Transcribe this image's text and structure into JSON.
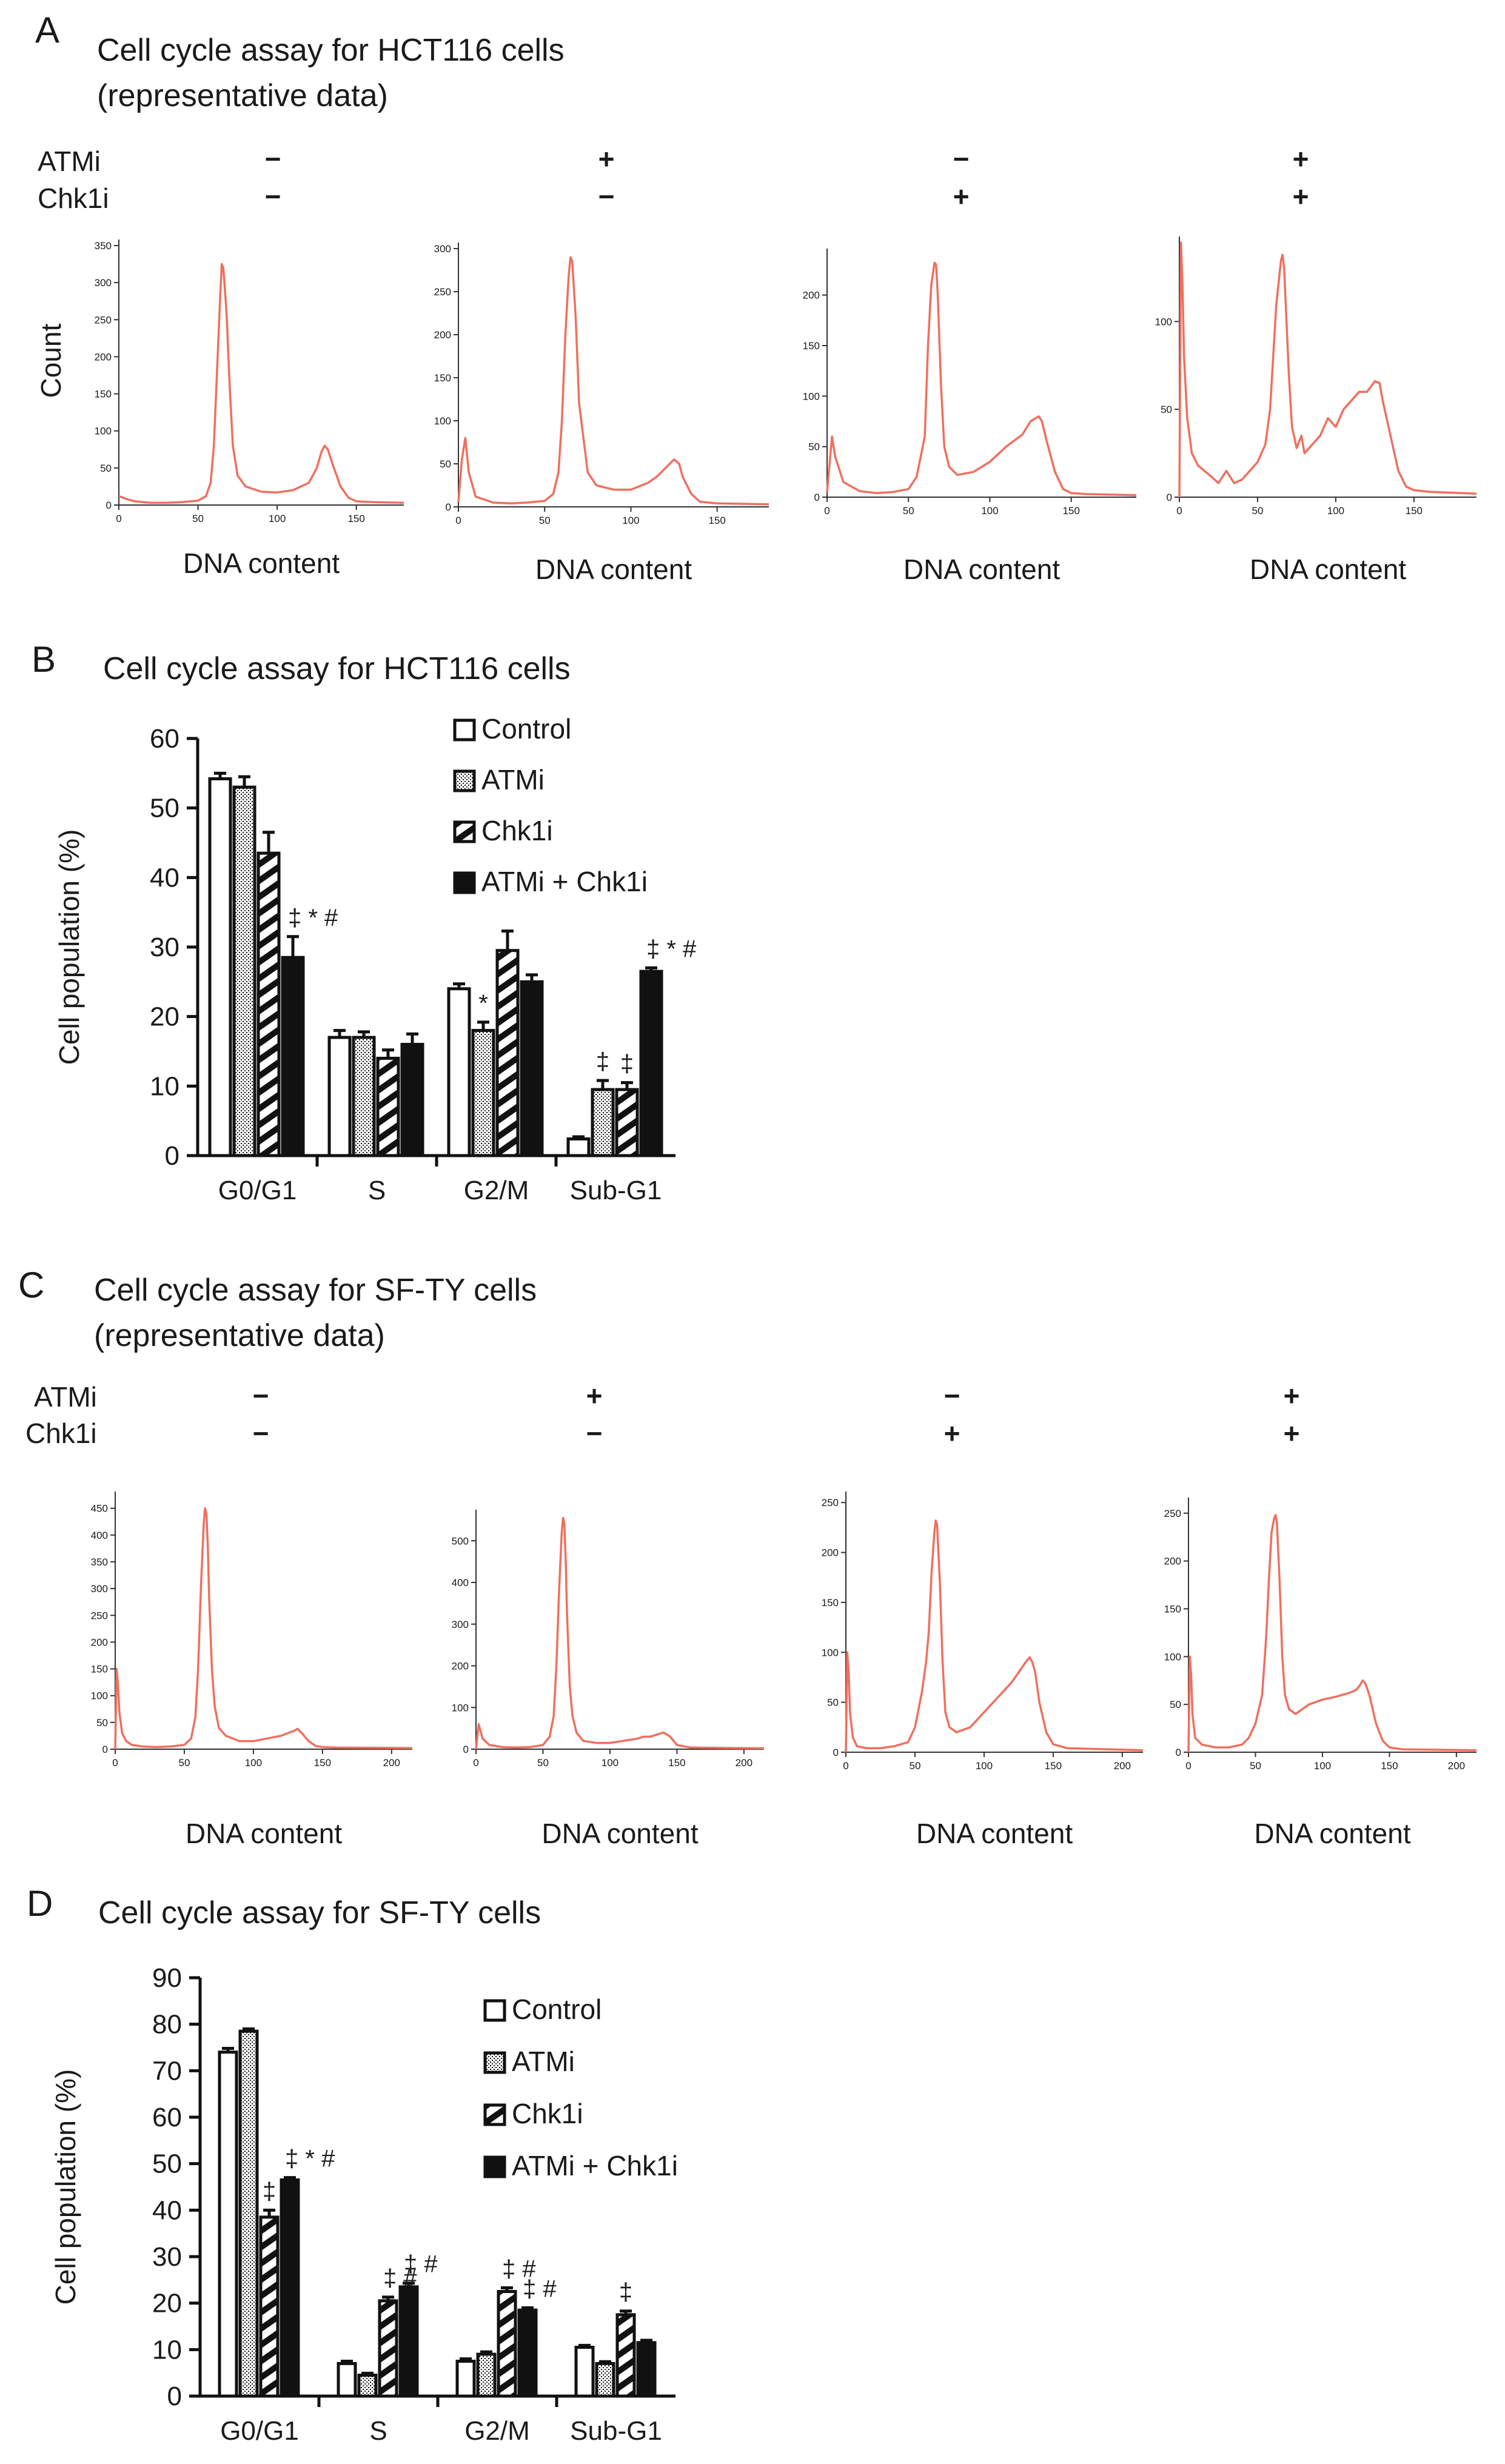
{
  "colors": {
    "trace": "#ef6f5e",
    "ink": "#111111",
    "bar_fill_light": "#ffffff",
    "bar_fill_dark": "#111111"
  },
  "panels": [
    {
      "letter": "A",
      "title": "Cell cycle assay for HCT116 cells",
      "subtitle": "(representative data)",
      "row_labels": [
        "ATMi",
        "Chk1i"
      ],
      "signs": [
        [
          "−",
          "−"
        ],
        [
          "+",
          "−"
        ],
        [
          "−",
          "+"
        ],
        [
          "+",
          "+"
        ]
      ],
      "y_label": "Count",
      "histograms": [
        {
          "xlabel": "DNA content",
          "yticks": [
            "0",
            "50",
            "100",
            "150",
            "200",
            "250",
            "300",
            "350"
          ],
          "xticks": [
            "0",
            "50",
            "100",
            "150"
          ]
        },
        {
          "xlabel": "DNA content",
          "yticks": [
            "0",
            "50",
            "100",
            "150",
            "200",
            "250",
            "300"
          ],
          "xticks": [
            "0",
            "50",
            "100",
            "150"
          ]
        },
        {
          "xlabel": "DNA content",
          "yticks": [
            "0",
            "50",
            "100",
            "150",
            "200"
          ],
          "xticks": [
            "0",
            "50",
            "100",
            "150"
          ]
        },
        {
          "xlabel": "DNA content",
          "yticks": [
            "0",
            "50",
            "100"
          ],
          "xticks": [
            "0",
            "50",
            "100",
            "150"
          ]
        }
      ]
    },
    {
      "letter": "C",
      "title": "Cell cycle assay for SF-TY cells",
      "subtitle": "(representative data)",
      "row_labels": [
        "ATMi",
        "Chk1i"
      ],
      "signs": [
        [
          "−",
          "−"
        ],
        [
          "+",
          "−"
        ],
        [
          "−",
          "+"
        ],
        [
          "+",
          "+"
        ]
      ],
      "histograms": [
        {
          "xlabel": "DNA content",
          "yticks": [
            "0",
            "50",
            "100",
            "150",
            "200",
            "250",
            "300",
            "350",
            "400",
            "450"
          ],
          "xticks": [
            "0",
            "50",
            "100",
            "150",
            "200"
          ]
        },
        {
          "xlabel": "DNA content",
          "yticks": [
            "0",
            "100",
            "200",
            "300",
            "400",
            "500"
          ],
          "xticks": [
            "0",
            "50",
            "100",
            "150",
            "200"
          ]
        },
        {
          "xlabel": "DNA content",
          "yticks": [
            "0",
            "50",
            "100",
            "150",
            "200",
            "250"
          ],
          "xticks": [
            "0",
            "50",
            "100",
            "150",
            "200"
          ]
        },
        {
          "xlabel": "DNA content",
          "yticks": [
            "0",
            "50",
            "100",
            "150",
            "200",
            "250"
          ],
          "xticks": [
            "0",
            "50",
            "100",
            "150",
            "200"
          ]
        }
      ]
    }
  ],
  "chart_data": [
    {
      "type": "line",
      "panel": "A",
      "title": "Cell cycle assay for HCT116 cells",
      "xlabel": "DNA content",
      "ylabel": "Count",
      "series": [
        {
          "xlim": [
            0,
            180
          ],
          "ylim": [
            0,
            350
          ],
          "x": [
            0,
            5,
            10,
            20,
            30,
            40,
            50,
            55,
            58,
            60,
            62,
            64,
            65,
            66,
            68,
            70,
            72,
            75,
            80,
            90,
            100,
            110,
            120,
            125,
            128,
            130,
            132,
            135,
            140,
            145,
            150,
            160,
            180
          ],
          "y": [
            12,
            8,
            5,
            3,
            3,
            4,
            6,
            12,
            30,
            80,
            180,
            280,
            325,
            320,
            260,
            160,
            80,
            40,
            25,
            18,
            17,
            20,
            30,
            50,
            72,
            80,
            75,
            55,
            25,
            10,
            5,
            4,
            3
          ]
        },
        {
          "xlim": [
            0,
            180
          ],
          "ylim": [
            0,
            300
          ],
          "x": [
            0,
            2,
            4,
            6,
            10,
            20,
            30,
            40,
            50,
            55,
            58,
            60,
            62,
            64,
            65,
            66,
            68,
            70,
            75,
            80,
            90,
            100,
            110,
            115,
            120,
            125,
            128,
            130,
            135,
            140,
            150,
            180
          ],
          "y": [
            5,
            55,
            80,
            40,
            12,
            5,
            4,
            5,
            7,
            15,
            40,
            100,
            200,
            270,
            290,
            285,
            220,
            120,
            40,
            25,
            20,
            20,
            28,
            35,
            45,
            55,
            50,
            35,
            15,
            6,
            4,
            3
          ]
        },
        {
          "xlim": [
            0,
            190
          ],
          "ylim": [
            0,
            240
          ],
          "x": [
            0,
            3,
            5,
            10,
            20,
            30,
            40,
            50,
            55,
            60,
            62,
            64,
            66,
            67,
            68,
            70,
            72,
            75,
            80,
            90,
            100,
            110,
            120,
            125,
            130,
            132,
            135,
            140,
            145,
            150,
            160,
            190
          ],
          "y": [
            5,
            60,
            40,
            15,
            6,
            4,
            5,
            8,
            20,
            60,
            150,
            210,
            232,
            230,
            200,
            110,
            50,
            30,
            22,
            25,
            35,
            50,
            62,
            75,
            80,
            75,
            55,
            25,
            8,
            4,
            3,
            2
          ]
        },
        {
          "xlim": [
            0,
            190
          ],
          "ylim": [
            0,
            145
          ],
          "x": [
            0,
            1,
            2,
            3,
            5,
            8,
            12,
            20,
            25,
            30,
            35,
            40,
            45,
            50,
            55,
            58,
            60,
            62,
            65,
            66,
            67,
            68,
            70,
            72,
            75,
            78,
            80,
            85,
            90,
            95,
            100,
            105,
            110,
            115,
            120,
            125,
            128,
            130,
            135,
            140,
            145,
            150,
            160,
            190
          ],
          "y": [
            0,
            145,
            120,
            80,
            45,
            25,
            18,
            12,
            8,
            15,
            8,
            10,
            15,
            20,
            30,
            50,
            80,
            110,
            135,
            138,
            130,
            110,
            70,
            40,
            28,
            35,
            25,
            30,
            35,
            45,
            40,
            50,
            55,
            60,
            60,
            66,
            65,
            55,
            35,
            15,
            6,
            4,
            3,
            2
          ]
        }
      ]
    },
    {
      "type": "bar",
      "panel": "B",
      "title": "Cell cycle assay for HCT116 cells",
      "ylabel": "Cell population (%)",
      "ylim": [
        0,
        60
      ],
      "yticks": [
        0,
        10,
        20,
        30,
        40,
        50,
        60
      ],
      "categories": [
        "G0/G1",
        "S",
        "G2/M",
        "Sub-G1"
      ],
      "series": [
        {
          "name": "Control",
          "values": [
            54.2,
            17.0,
            24.0,
            2.4
          ],
          "errors": [
            0.8,
            1.0,
            0.7,
            0.3
          ]
        },
        {
          "name": "ATMi",
          "values": [
            53.0,
            17.0,
            18.0,
            9.5
          ],
          "errors": [
            1.5,
            0.8,
            1.2,
            1.3
          ]
        },
        {
          "name": "Chk1i",
          "values": [
            43.5,
            14.0,
            29.5,
            9.5
          ],
          "errors": [
            3.0,
            1.2,
            2.8,
            1.0
          ]
        },
        {
          "name": "ATMi + Chk1i",
          "values": [
            28.5,
            16.0,
            25.0,
            26.5
          ],
          "errors": [
            3.0,
            1.5,
            1.0,
            0.5
          ]
        }
      ],
      "annotations": [
        {
          "category": "G0/G1",
          "series": "ATMi + Chk1i",
          "text": "‡ * #"
        },
        {
          "category": "G2/M",
          "series": "ATMi",
          "text": "*"
        },
        {
          "category": "Sub-G1",
          "series": "ATMi",
          "text": "‡"
        },
        {
          "category": "Sub-G1",
          "series": "Chk1i",
          "text": "‡"
        },
        {
          "category": "Sub-G1",
          "series": "ATMi + Chk1i",
          "text": "‡ * #"
        }
      ]
    },
    {
      "type": "line",
      "panel": "C",
      "title": "Cell cycle assay for SF-TY cells",
      "xlabel": "DNA content",
      "series": [
        {
          "xlim": [
            0,
            215
          ],
          "ylim": [
            0,
            470
          ],
          "x": [
            0,
            1,
            2,
            3,
            5,
            8,
            12,
            20,
            30,
            40,
            50,
            55,
            58,
            60,
            62,
            64,
            65,
            66,
            67,
            68,
            70,
            72,
            75,
            80,
            90,
            100,
            110,
            120,
            125,
            130,
            132,
            135,
            140,
            145,
            150,
            160,
            215
          ],
          "y": [
            0,
            150,
            120,
            70,
            30,
            15,
            8,
            5,
            4,
            5,
            8,
            20,
            60,
            150,
            300,
            420,
            450,
            440,
            380,
            280,
            150,
            80,
            40,
            25,
            15,
            15,
            20,
            25,
            30,
            35,
            38,
            30,
            15,
            6,
            4,
            3,
            2
          ]
        },
        {
          "xlim": [
            0,
            215
          ],
          "ylim": [
            0,
            560
          ],
          "x": [
            0,
            2,
            5,
            10,
            20,
            30,
            40,
            50,
            55,
            58,
            60,
            62,
            64,
            65,
            66,
            67,
            68,
            70,
            72,
            75,
            80,
            90,
            100,
            110,
            120,
            125,
            130,
            135,
            140,
            145,
            150,
            160,
            215
          ],
          "y": [
            0,
            60,
            25,
            10,
            5,
            4,
            5,
            10,
            30,
            80,
            200,
            380,
            520,
            555,
            540,
            450,
            320,
            150,
            80,
            40,
            20,
            15,
            15,
            20,
            25,
            30,
            30,
            35,
            40,
            30,
            10,
            4,
            2
          ]
        },
        {
          "xlim": [
            0,
            215
          ],
          "ylim": [
            0,
            255
          ],
          "x": [
            0,
            1,
            2,
            3,
            5,
            8,
            15,
            25,
            35,
            45,
            50,
            55,
            58,
            60,
            62,
            64,
            65,
            66,
            68,
            70,
            72,
            75,
            80,
            90,
            100,
            110,
            120,
            125,
            130,
            133,
            135,
            137,
            140,
            145,
            150,
            160,
            215
          ],
          "y": [
            0,
            100,
            80,
            40,
            15,
            6,
            4,
            4,
            6,
            10,
            25,
            60,
            90,
            120,
            180,
            220,
            232,
            228,
            170,
            90,
            40,
            25,
            20,
            25,
            40,
            55,
            70,
            80,
            90,
            95,
            90,
            80,
            50,
            20,
            8,
            4,
            2
          ]
        },
        {
          "xlim": [
            0,
            215
          ],
          "ylim": [
            0,
            260
          ],
          "x": [
            0,
            1,
            2,
            3,
            5,
            10,
            20,
            30,
            40,
            45,
            50,
            55,
            58,
            60,
            62,
            64,
            65,
            66,
            68,
            70,
            72,
            75,
            80,
            90,
            100,
            110,
            120,
            125,
            128,
            130,
            132,
            135,
            140,
            145,
            150,
            160,
            215
          ],
          "y": [
            0,
            100,
            80,
            40,
            15,
            8,
            5,
            5,
            8,
            15,
            30,
            60,
            120,
            180,
            230,
            245,
            248,
            240,
            180,
            100,
            60,
            45,
            40,
            50,
            55,
            58,
            62,
            65,
            70,
            75,
            72,
            60,
            30,
            12,
            5,
            3,
            2
          ]
        }
      ]
    },
    {
      "type": "bar",
      "panel": "D",
      "title": "Cell cycle assay for SF-TY cells",
      "ylabel": "Cell population (%)",
      "ylim": [
        0,
        90
      ],
      "yticks": [
        0,
        10,
        20,
        30,
        40,
        50,
        60,
        70,
        80,
        90
      ],
      "categories": [
        "G0/G1",
        "S",
        "G2/M",
        "Sub-G1"
      ],
      "series": [
        {
          "name": "Control",
          "values": [
            74.0,
            7.0,
            7.5,
            10.5
          ],
          "errors": [
            0.8,
            0.5,
            0.5,
            0.4
          ]
        },
        {
          "name": "ATMi",
          "values": [
            78.5,
            4.5,
            9.0,
            7.0
          ],
          "errors": [
            0.5,
            0.4,
            0.5,
            0.4
          ]
        },
        {
          "name": "Chk1i",
          "values": [
            38.5,
            20.5,
            22.5,
            17.5
          ],
          "errors": [
            1.5,
            0.8,
            0.8,
            0.8
          ]
        },
        {
          "name": "ATMi + Chk1i",
          "values": [
            46.5,
            23.5,
            18.5,
            11.5
          ],
          "errors": [
            0.5,
            0.8,
            0.5,
            0.5
          ]
        }
      ],
      "annotations": [
        {
          "category": "G0/G1",
          "series": "Chk1i",
          "text": "‡"
        },
        {
          "category": "G0/G1",
          "series": "ATMi + Chk1i",
          "text": "‡ * #"
        },
        {
          "category": "S",
          "series": "Chk1i",
          "text": "‡ #"
        },
        {
          "category": "S",
          "series": "ATMi + Chk1i",
          "text": "‡ #"
        },
        {
          "category": "G2/M",
          "series": "Chk1i",
          "text": "‡ #"
        },
        {
          "category": "G2/M",
          "series": "ATMi + Chk1i",
          "text": "‡ #"
        },
        {
          "category": "Sub-G1",
          "series": "Chk1i",
          "text": "‡"
        }
      ]
    }
  ]
}
